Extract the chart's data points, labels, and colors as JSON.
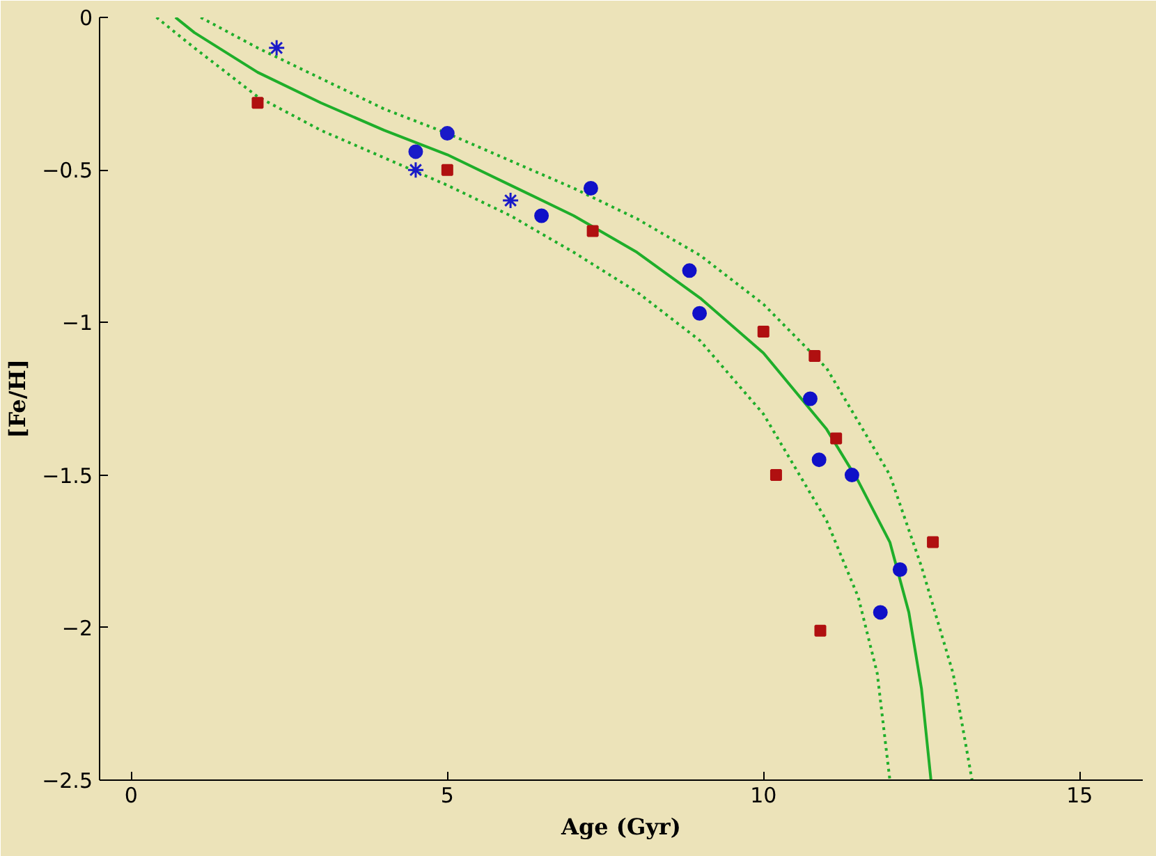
{
  "chart_data": {
    "type": "scatter",
    "xlabel": "Age (Gyr)",
    "ylabel": "[Fe/H]",
    "xlim": [
      -0.5,
      16
    ],
    "ylim": [
      -2.5,
      0
    ],
    "xticks": [
      0,
      5,
      10,
      15
    ],
    "yticks": [
      -2.5,
      -2,
      -1.5,
      -1,
      -0.5,
      0
    ],
    "grid": false,
    "series": [
      {
        "type": "line",
        "line_style": "solid",
        "marker": "none",
        "color": "#1fae2a",
        "x": [
          0.7,
          1,
          2,
          3,
          4,
          5,
          6,
          7,
          8,
          9,
          10,
          11,
          11.5,
          12,
          12.3,
          12.5,
          12.65
        ],
        "values": [
          0,
          -0.05,
          -0.18,
          -0.28,
          -0.37,
          -0.45,
          -0.55,
          -0.65,
          -0.77,
          -0.92,
          -1.1,
          -1.35,
          -1.52,
          -1.72,
          -1.95,
          -2.2,
          -2.5
        ]
      },
      {
        "type": "line",
        "line_style": "dotted",
        "marker": "none",
        "color": "#1fae2a",
        "x": [
          1.1,
          2,
          3,
          4,
          5,
          6,
          7,
          8,
          9,
          10,
          11,
          12,
          12.5,
          13,
          13.3
        ],
        "values": [
          0,
          -0.1,
          -0.2,
          -0.3,
          -0.38,
          -0.47,
          -0.56,
          -0.66,
          -0.78,
          -0.94,
          -1.15,
          -1.5,
          -1.8,
          -2.15,
          -2.5
        ]
      },
      {
        "type": "line",
        "line_style": "dotted",
        "marker": "none",
        "color": "#1fae2a",
        "x": [
          0.4,
          1,
          2,
          3,
          4,
          5,
          6,
          7,
          8,
          9,
          10,
          11,
          11.5,
          11.8,
          12
        ],
        "values": [
          0,
          -0.1,
          -0.26,
          -0.37,
          -0.46,
          -0.55,
          -0.65,
          -0.77,
          -0.9,
          -1.06,
          -1.3,
          -1.65,
          -1.9,
          -2.15,
          -2.5
        ]
      },
      {
        "marker": "cross",
        "color": "#1a1ac8",
        "x": [
          2.3,
          4.5,
          6.0
        ],
        "values": [
          -0.1,
          -0.5,
          -0.6
        ]
      },
      {
        "marker": "circle",
        "color": "#1a1ac8",
        "x": [
          4.5,
          5.0
        ],
        "values": [
          -0.44,
          -0.38
        ]
      },
      {
        "marker": "square",
        "color": "#b01010",
        "x": [
          2.0,
          5.0
        ],
        "values": [
          -0.28,
          -0.5
        ]
      },
      {
        "marker": "circle",
        "color": "#1010c8",
        "x": [
          7.27,
          6.49,
          8.83,
          8.99,
          10.74,
          10.88,
          11.4,
          12.16,
          11.85
        ],
        "values": [
          -0.56,
          -0.65,
          -0.83,
          -0.97,
          -1.25,
          -1.45,
          -1.5,
          -1.81,
          -1.95
        ]
      },
      {
        "marker": "square",
        "color": "#b01010",
        "x": [
          7.3,
          10.0,
          10.81,
          11.15,
          10.2,
          12.68,
          10.9
        ],
        "values": [
          -0.7,
          -1.03,
          -1.11,
          -1.38,
          -1.5,
          -1.72,
          -2.01
        ]
      }
    ]
  }
}
